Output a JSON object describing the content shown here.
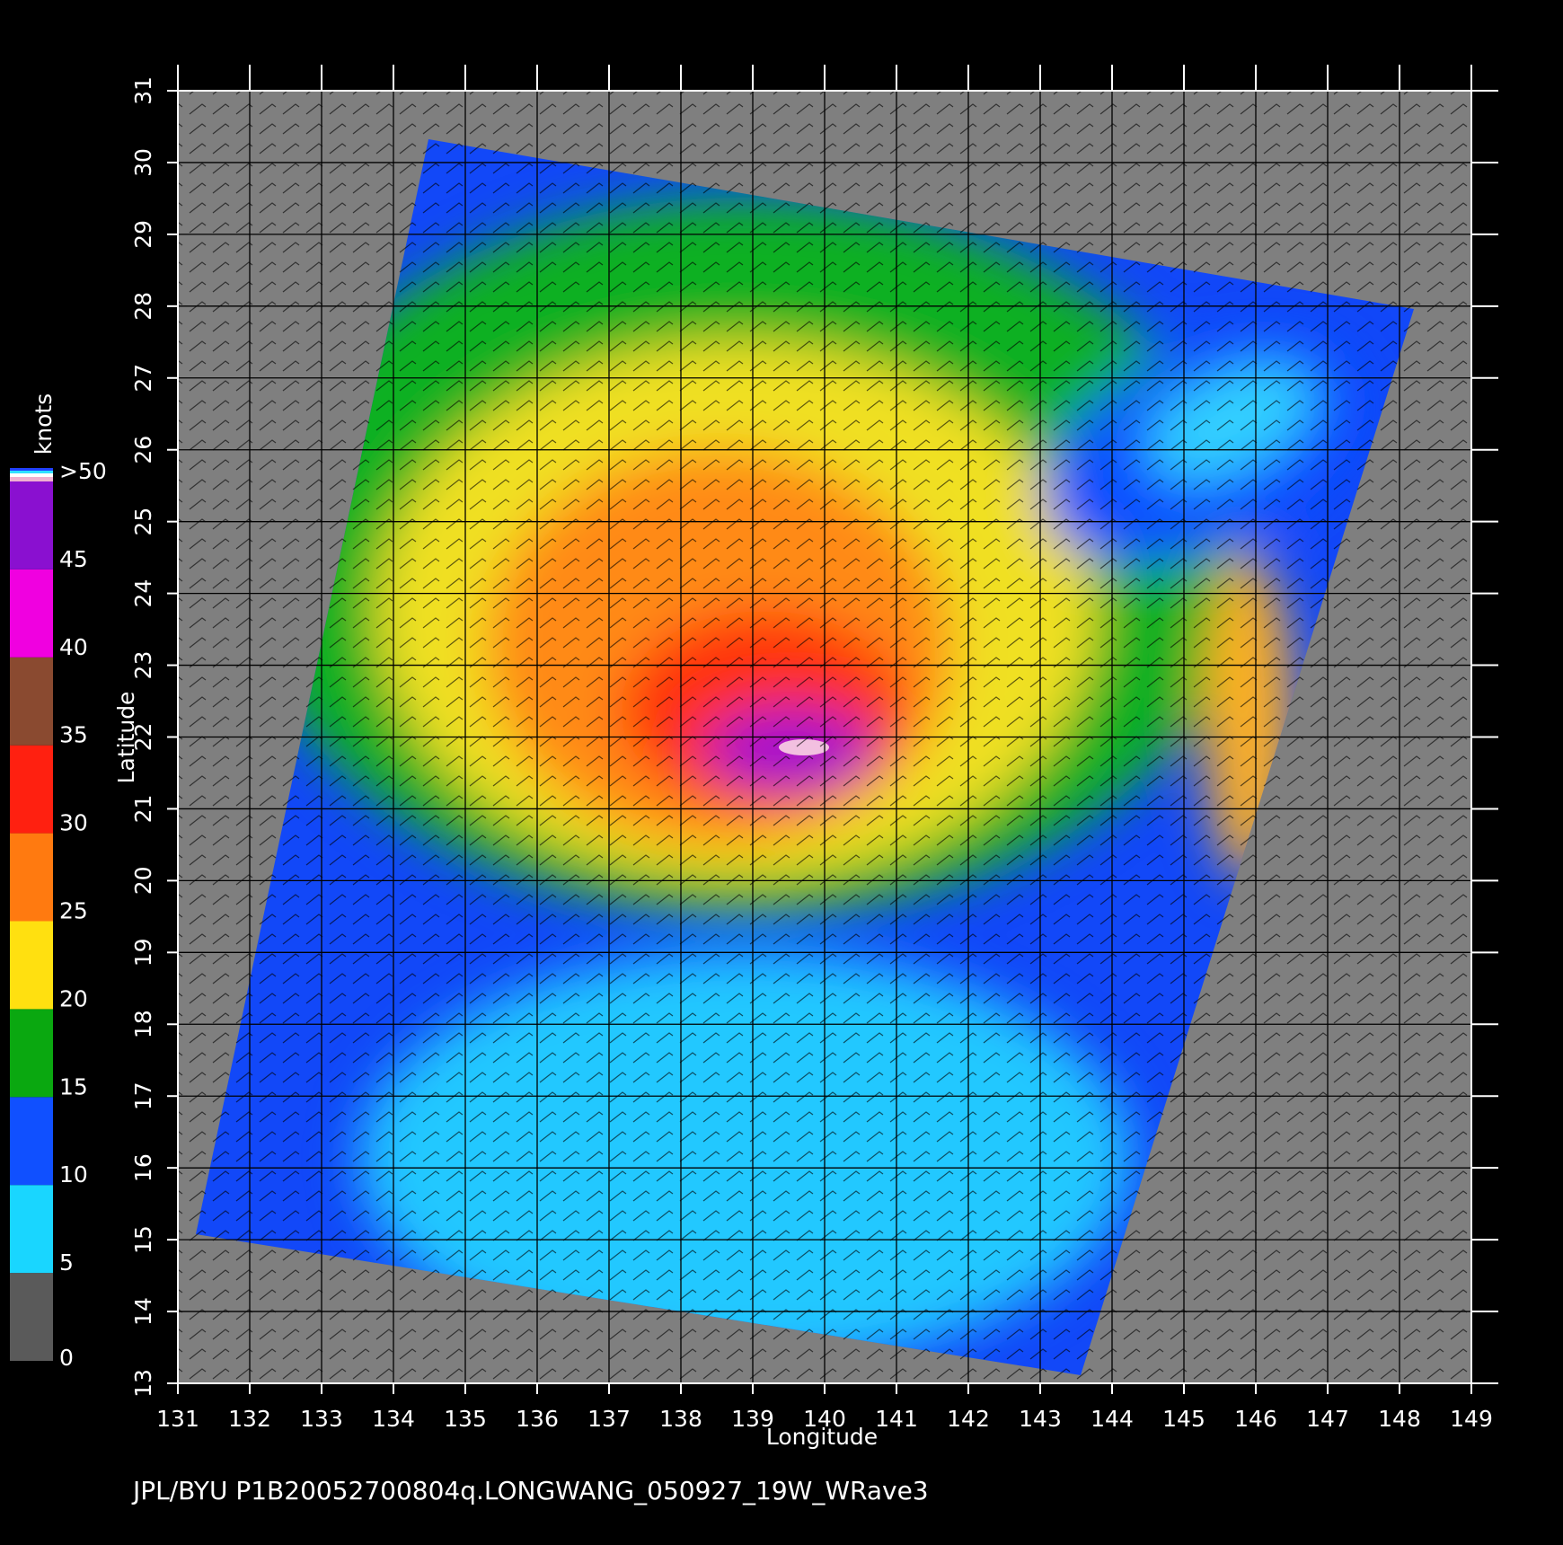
{
  "chart_data": {
    "type": "map",
    "title": "JPL/BYU  P1B20052700804q.LONGWANG_050927_19W_WRave3",
    "x_label": "Longitude",
    "y_label": "Latitude",
    "xlim": [
      131,
      149
    ],
    "xticks": [
      131,
      132,
      133,
      134,
      135,
      136,
      137,
      138,
      139,
      140,
      141,
      142,
      143,
      144,
      145,
      146,
      147,
      148,
      149
    ],
    "ylim": [
      13,
      31
    ],
    "yticks": [
      13,
      14,
      15,
      16,
      17,
      18,
      19,
      20,
      21,
      22,
      23,
      24,
      25,
      26,
      27,
      28,
      29,
      30,
      31
    ],
    "grid": true,
    "colorbar": {
      "label": "knots",
      "lim": [
        0,
        50
      ],
      "ticks": [
        0,
        5,
        10,
        15,
        20,
        25,
        30,
        35,
        40,
        45,
        {
          "value": 50,
          "label": ">50"
        }
      ],
      "colors": [
        "#5a5a5a",
        "#19d6ff",
        "#1050ff",
        "#0aa810",
        "#ffe010",
        "#ff7a10",
        "#ff2010",
        "#8a4a30",
        "#f000e0",
        "#8a10d0"
      ]
    }
  }
}
